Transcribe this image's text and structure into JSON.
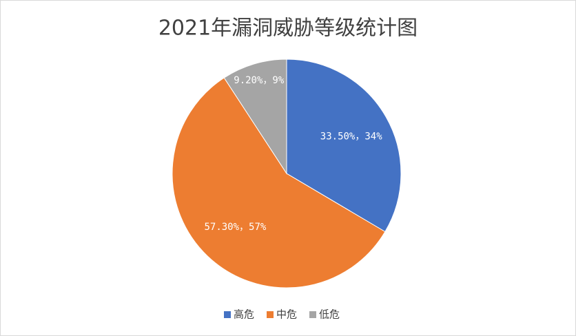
{
  "chart_data": {
    "type": "pie",
    "title": "2021年漏洞威胁等级统计图",
    "categories": [
      "高危",
      "中危",
      "低危"
    ],
    "values": [
      33.5,
      57.3,
      9.2
    ],
    "value_labels": [
      "33.50%，34%",
      "57.30%，57%",
      "9.20%，9%"
    ],
    "colors": [
      "#4472c4",
      "#ed7d31",
      "#a5a5a5"
    ],
    "legend": "bottom"
  }
}
